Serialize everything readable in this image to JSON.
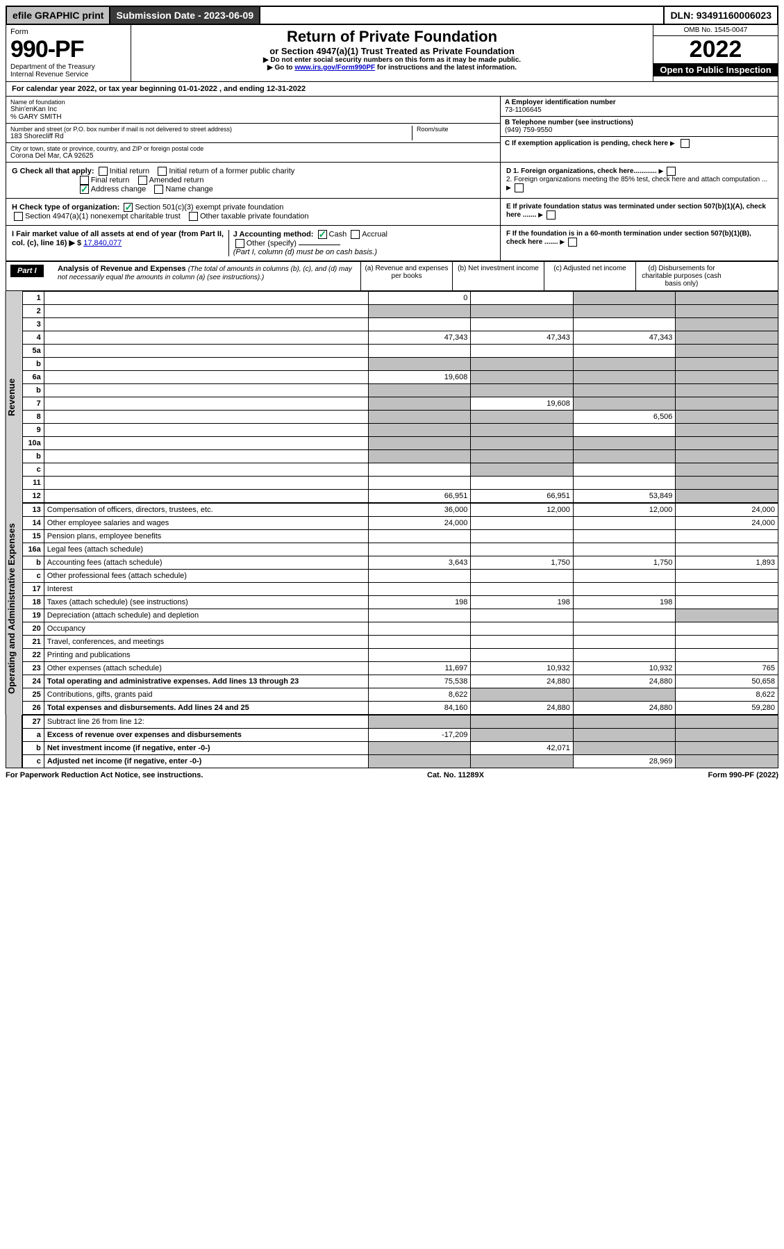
{
  "topbar": {
    "efile": "efile GRAPHIC print",
    "submission": "Submission Date - 2023-06-09",
    "dln": "DLN: 93491160006023"
  },
  "header": {
    "form_word": "Form",
    "form_num": "990-PF",
    "dept": "Department of the Treasury",
    "irs": "Internal Revenue Service",
    "title": "Return of Private Foundation",
    "subtitle": "or Section 4947(a)(1) Trust Treated as Private Foundation",
    "note1": "▶ Do not enter social security numbers on this form as it may be made public.",
    "note2_pre": "▶ Go to ",
    "note2_link": "www.irs.gov/Form990PF",
    "note2_post": " for instructions and the latest information.",
    "omb": "OMB No. 1545-0047",
    "year": "2022",
    "open": "Open to Public Inspection"
  },
  "calyear": {
    "text_pre": "For calendar year 2022, or tax year beginning ",
    "begin": "01-01-2022",
    "text_mid": " , and ending ",
    "end": "12-31-2022"
  },
  "info": {
    "name_label": "Name of foundation",
    "name": "Shin'enKan Inc",
    "care_of": "% GARY SMITH",
    "street_label": "Number and street (or P.O. box number if mail is not delivered to street address)",
    "street": "183 Shorecliff Rd",
    "room_label": "Room/suite",
    "city_label": "City or town, state or province, country, and ZIP or foreign postal code",
    "city": "Corona Del Mar, CA  92625",
    "a_label": "A Employer identification number",
    "a_val": "73-1106645",
    "b_label": "B Telephone number (see instructions)",
    "b_val": "(949) 759-9550",
    "c_label": "C If exemption application is pending, check here"
  },
  "checks": {
    "g_label": "G Check all that apply:",
    "g_opts": [
      "Initial return",
      "Initial return of a former public charity",
      "Final return",
      "Amended return",
      "Address change",
      "Name change"
    ],
    "h_label": "H Check type of organization:",
    "h_opt1": "Section 501(c)(3) exempt private foundation",
    "h_opt2": "Section 4947(a)(1) nonexempt charitable trust",
    "h_opt3": "Other taxable private foundation",
    "i_label": "I Fair market value of all assets at end of year (from Part II, col. (c), line 16) ▶ $",
    "i_val": "17,840,077",
    "j_label": "J Accounting method:",
    "j_cash": "Cash",
    "j_accrual": "Accrual",
    "j_other": "Other (specify)",
    "j_note": "(Part I, column (d) must be on cash basis.)",
    "d1": "D 1. Foreign organizations, check here............",
    "d2": "2. Foreign organizations meeting the 85% test, check here and attach computation ...",
    "e": "E If private foundation status was terminated under section 507(b)(1)(A), check here .......",
    "f": "F If the foundation is in a 60-month termination under section 507(b)(1)(B), check here ......."
  },
  "part1": {
    "label": "Part I",
    "title": "Analysis of Revenue and Expenses",
    "title_note": " (The total of amounts in columns (b), (c), and (d) may not necessarily equal the amounts in column (a) (see instructions).)",
    "col_a": "(a) Revenue and expenses per books",
    "col_b": "(b) Net investment income",
    "col_c": "(c) Adjusted net income",
    "col_d": "(d) Disbursements for charitable purposes (cash basis only)"
  },
  "side": {
    "rev": "Revenue",
    "exp": "Operating and Administrative Expenses"
  },
  "rows": [
    {
      "n": "1",
      "d": "",
      "a": "0",
      "b": "",
      "c": "",
      "bs": false,
      "cs": true,
      "ds": true
    },
    {
      "n": "2",
      "d": "",
      "a": "",
      "b": "",
      "c": "",
      "as": true,
      "bs": true,
      "cs": true,
      "ds": true,
      "bold_not": true
    },
    {
      "n": "3",
      "d": "",
      "a": "",
      "b": "",
      "c": "",
      "ds": true
    },
    {
      "n": "4",
      "d": "",
      "a": "47,343",
      "b": "47,343",
      "c": "47,343",
      "ds": true
    },
    {
      "n": "5a",
      "d": "",
      "a": "",
      "b": "",
      "c": "",
      "ds": true
    },
    {
      "n": "b",
      "d": "",
      "a": "",
      "b": "",
      "c": "",
      "as": true,
      "bs": true,
      "cs": true,
      "ds": true
    },
    {
      "n": "6a",
      "d": "",
      "a": "19,608",
      "b": "",
      "c": "",
      "bs": true,
      "cs": true,
      "ds": true
    },
    {
      "n": "b",
      "d": "",
      "a": "",
      "b": "",
      "c": "",
      "as": true,
      "bs": true,
      "cs": true,
      "ds": true
    },
    {
      "n": "7",
      "d": "",
      "a": "",
      "b": "19,608",
      "c": "",
      "as": true,
      "cs": true,
      "ds": true
    },
    {
      "n": "8",
      "d": "",
      "a": "",
      "b": "",
      "c": "6,506",
      "as": true,
      "bs": true,
      "ds": true
    },
    {
      "n": "9",
      "d": "",
      "a": "",
      "b": "",
      "c": "",
      "as": true,
      "bs": true,
      "ds": true
    },
    {
      "n": "10a",
      "d": "",
      "a": "",
      "b": "",
      "c": "",
      "as": true,
      "bs": true,
      "cs": true,
      "ds": true
    },
    {
      "n": "b",
      "d": "",
      "a": "",
      "b": "",
      "c": "",
      "as": true,
      "bs": true,
      "cs": true,
      "ds": true
    },
    {
      "n": "c",
      "d": "",
      "a": "",
      "b": "",
      "c": "",
      "bs": true,
      "ds": true
    },
    {
      "n": "11",
      "d": "",
      "a": "",
      "b": "",
      "c": "",
      "ds": true
    },
    {
      "n": "12",
      "d": "",
      "a": "66,951",
      "b": "66,951",
      "c": "53,849",
      "ds": true,
      "bold": true
    }
  ],
  "exp_rows": [
    {
      "n": "13",
      "d": "Compensation of officers, directors, trustees, etc.",
      "a": "36,000",
      "b": "12,000",
      "c": "12,000",
      "dv": "24,000"
    },
    {
      "n": "14",
      "d": "Other employee salaries and wages",
      "a": "24,000",
      "b": "",
      "c": "",
      "dv": "24,000"
    },
    {
      "n": "15",
      "d": "Pension plans, employee benefits",
      "a": "",
      "b": "",
      "c": "",
      "dv": ""
    },
    {
      "n": "16a",
      "d": "Legal fees (attach schedule)",
      "a": "",
      "b": "",
      "c": "",
      "dv": ""
    },
    {
      "n": "b",
      "d": "Accounting fees (attach schedule)",
      "a": "3,643",
      "b": "1,750",
      "c": "1,750",
      "dv": "1,893"
    },
    {
      "n": "c",
      "d": "Other professional fees (attach schedule)",
      "a": "",
      "b": "",
      "c": "",
      "dv": ""
    },
    {
      "n": "17",
      "d": "Interest",
      "a": "",
      "b": "",
      "c": "",
      "dv": ""
    },
    {
      "n": "18",
      "d": "Taxes (attach schedule) (see instructions)",
      "a": "198",
      "b": "198",
      "c": "198",
      "dv": ""
    },
    {
      "n": "19",
      "d": "Depreciation (attach schedule) and depletion",
      "a": "",
      "b": "",
      "c": "",
      "dv": "",
      "ds": true
    },
    {
      "n": "20",
      "d": "Occupancy",
      "a": "",
      "b": "",
      "c": "",
      "dv": ""
    },
    {
      "n": "21",
      "d": "Travel, conferences, and meetings",
      "a": "",
      "b": "",
      "c": "",
      "dv": ""
    },
    {
      "n": "22",
      "d": "Printing and publications",
      "a": "",
      "b": "",
      "c": "",
      "dv": ""
    },
    {
      "n": "23",
      "d": "Other expenses (attach schedule)",
      "a": "11,697",
      "b": "10,932",
      "c": "10,932",
      "dv": "765"
    },
    {
      "n": "24",
      "d": "Total operating and administrative expenses. Add lines 13 through 23",
      "a": "75,538",
      "b": "24,880",
      "c": "24,880",
      "dv": "50,658",
      "bold": true
    },
    {
      "n": "25",
      "d": "Contributions, gifts, grants paid",
      "a": "8,622",
      "b": "",
      "c": "",
      "dv": "8,622",
      "bs": true,
      "cs": true
    },
    {
      "n": "26",
      "d": "Total expenses and disbursements. Add lines 24 and 25",
      "a": "84,160",
      "b": "24,880",
      "c": "24,880",
      "dv": "59,280",
      "bold": true
    }
  ],
  "bottom_rows": [
    {
      "n": "27",
      "d": "Subtract line 26 from line 12:",
      "a": "",
      "b": "",
      "c": "",
      "dv": "",
      "as": true,
      "bs": true,
      "cs": true,
      "ds": true
    },
    {
      "n": "a",
      "d": "Excess of revenue over expenses and disbursements",
      "a": "-17,209",
      "b": "",
      "c": "",
      "dv": "",
      "bs": true,
      "cs": true,
      "ds": true,
      "bold": true
    },
    {
      "n": "b",
      "d": "Net investment income (if negative, enter -0-)",
      "a": "",
      "b": "42,071",
      "c": "",
      "dv": "",
      "as": true,
      "cs": true,
      "ds": true,
      "bold": true
    },
    {
      "n": "c",
      "d": "Adjusted net income (if negative, enter -0-)",
      "a": "",
      "b": "",
      "c": "28,969",
      "dv": "",
      "as": true,
      "bs": true,
      "ds": true,
      "bold": true
    }
  ],
  "footer": {
    "left": "For Paperwork Reduction Act Notice, see instructions.",
    "mid": "Cat. No. 11289X",
    "right": "Form 990-PF (2022)"
  }
}
